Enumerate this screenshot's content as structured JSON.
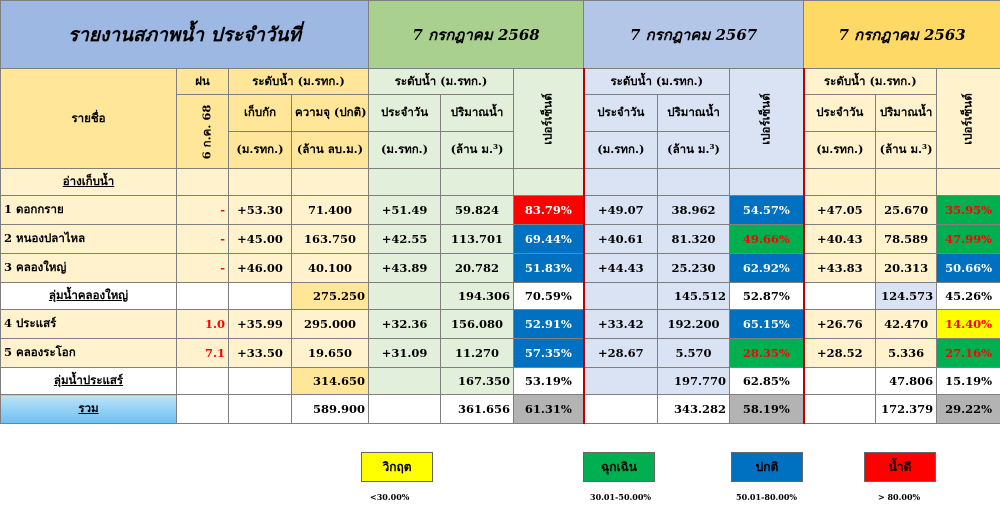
{
  "titles": {
    "report": "รายงานสภาพน้ำ ประจำวันที่",
    "date1": "7 กรกฎาคม 2568",
    "date2": "7 กรกฎาคม 2567",
    "date3": "7 กรกฎาคม 2563"
  },
  "headers": {
    "name": "รายชื่อ",
    "rain": "ฝน",
    "rain_date": "6 ก.ค. 68",
    "level_msl": "ระดับน้ำ (ม.รทก.)",
    "storage_level": "เก็บกัก",
    "storage_unit": "(ม.รทก.)",
    "capacity": "ความจุ (ปกติ)",
    "capacity_unit": "(ล้าน ลบ.ม.)",
    "level_msl_2": "ระดับน้ำ (ม.รทก.)",
    "daily": "ประจำวัน",
    "daily_unit": "(ม.รทก.)",
    "volume": "ปริมาณน้ำ",
    "volume_unit": "(ล้าน ม.³)",
    "percent": "เปอร์เซ็นต์"
  },
  "section_reservoir": "อ่างเก็บน้ำ",
  "rows": [
    {
      "name": "1 ดอกกราย",
      "rain": "-",
      "storage": "+53.30",
      "capacity": "71.400",
      "d1": "+51.49",
      "v1": "59.824",
      "p1": "83.79%",
      "d2": "+49.07",
      "v2": "38.962",
      "p2": "54.57%",
      "d3": "+47.05",
      "v3": "25.670",
      "p3": "35.95%"
    },
    {
      "name": "2 หนองปลาไหล",
      "rain": "-",
      "storage": "+45.00",
      "capacity": "163.750",
      "d1": "+42.55",
      "v1": "113.701",
      "p1": "69.44%",
      "d2": "+40.61",
      "v2": "81.320",
      "p2": "49.66%",
      "d3": "+40.43",
      "v3": "78.589",
      "p3": "47.99%"
    },
    {
      "name": "3 คลองใหญ่",
      "rain": "-",
      "storage": "+46.00",
      "capacity": "40.100",
      "d1": "+43.89",
      "v1": "20.782",
      "p1": "51.83%",
      "d2": "+44.43",
      "v2": "25.230",
      "p2": "62.92%",
      "d3": "+43.83",
      "v3": "20.313",
      "p3": "50.66%"
    }
  ],
  "subtotal1": {
    "name": "ลุ่มน้ำคลองใหญ่",
    "capacity": "275.250",
    "v1": "194.306",
    "p1": "70.59%",
    "v2": "145.512",
    "p2": "52.87%",
    "v3": "124.573",
    "p3": "45.26%"
  },
  "rows2": [
    {
      "name": "4 ประแสร์",
      "rain": "1.0",
      "storage": "+35.99",
      "capacity": "295.000",
      "d1": "+32.36",
      "v1": "156.080",
      "p1": "52.91%",
      "d2": "+33.42",
      "v2": "192.200",
      "p2": "65.15%",
      "d3": "+26.76",
      "v3": "42.470",
      "p3": "14.40%"
    },
    {
      "name": "5 คลองระโอก",
      "rain": "7.1",
      "storage": "+33.50",
      "capacity": "19.650",
      "d1": "+31.09",
      "v1": "11.270",
      "p1": "57.35%",
      "d2": "+28.67",
      "v2": "5.570",
      "p2": "28.35%",
      "d3": "+28.52",
      "v3": "5.336",
      "p3": "27.16%"
    }
  ],
  "subtotal2": {
    "name": "ลุ่มน้ำประแสร์",
    "capacity": "314.650",
    "v1": "167.350",
    "p1": "53.19%",
    "v2": "197.770",
    "p2": "62.85%",
    "v3": "47.806",
    "p3": "15.19%"
  },
  "total": {
    "name": "รวม",
    "capacity": "589.900",
    "v1": "361.656",
    "p1": "61.31%",
    "v2": "343.282",
    "p2": "58.19%",
    "v3": "172.379",
    "p3": "29.22%"
  },
  "legend": [
    {
      "label": "วิกฤต",
      "range": "<30.00%",
      "color": "#ffff00"
    },
    {
      "label": "ฉุกเฉิน",
      "range": "30.01-50.00%",
      "color": "#00b050"
    },
    {
      "label": "ปกติ",
      "range": "50.01-80.00%",
      "color": "#0070c0"
    },
    {
      "label": "น้ำดี",
      "range": "> 80.00%",
      "color": "#ff0000"
    }
  ]
}
